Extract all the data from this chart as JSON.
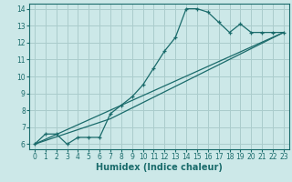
{
  "title": "",
  "xlabel": "Humidex (Indice chaleur)",
  "bg_color": "#cce8e8",
  "line_color": "#1a6b6b",
  "grid_color": "#aacccc",
  "xlim": [
    -0.5,
    23.5
  ],
  "ylim": [
    5.7,
    14.3
  ],
  "xticks": [
    0,
    1,
    2,
    3,
    4,
    5,
    6,
    7,
    8,
    9,
    10,
    11,
    12,
    13,
    14,
    15,
    16,
    17,
    18,
    19,
    20,
    21,
    22,
    23
  ],
  "yticks": [
    6,
    7,
    8,
    9,
    10,
    11,
    12,
    13,
    14
  ],
  "curve1_x": [
    0,
    1,
    2,
    3,
    4,
    5,
    6,
    7,
    8,
    9,
    10,
    11,
    12,
    13,
    14,
    15,
    16,
    17,
    18,
    19,
    20,
    21,
    22,
    23
  ],
  "curve1_y": [
    6.0,
    6.6,
    6.6,
    6.0,
    6.4,
    6.4,
    6.4,
    7.8,
    8.3,
    8.8,
    9.5,
    10.5,
    11.5,
    12.3,
    14.0,
    14.0,
    13.8,
    13.2,
    12.6,
    13.1,
    12.6,
    12.6,
    12.6,
    12.6
  ],
  "curve2_x": [
    0,
    23
  ],
  "curve2_y": [
    6.0,
    12.6
  ],
  "curve3_x": [
    0,
    7,
    23
  ],
  "curve3_y": [
    6.0,
    7.5,
    12.6
  ],
  "tick_fontsize": 5.5,
  "xlabel_fontsize": 7
}
